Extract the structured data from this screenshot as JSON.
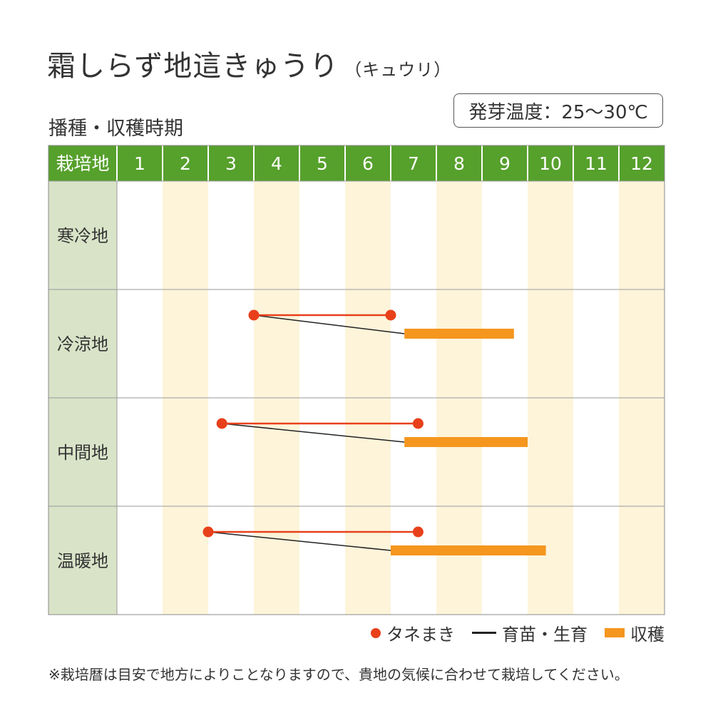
{
  "title": "霜しらず地這きゅうり",
  "title_sub": "（キュウリ）",
  "subtitle": "播種・収穫時期",
  "germination_temp": "発芽温度：25～30℃",
  "colors": {
    "header_green": "#56a02c",
    "row_header_bg": "#d9e3c8",
    "stripe": "#fdf4da",
    "sowing": "#e8401b",
    "harvest": "#f5961e",
    "growing": "#222222"
  },
  "chart_data": {
    "type": "table",
    "corner_label": "栽培地",
    "months": [
      "1",
      "2",
      "3",
      "4",
      "5",
      "6",
      "7",
      "8",
      "9",
      "10",
      "11",
      "12"
    ],
    "rows": [
      {
        "region": "寒冷地"
      },
      {
        "region": "冷涼地",
        "sowing": [
          4.0,
          7.0
        ],
        "harvest": [
          7.3,
          9.7
        ]
      },
      {
        "region": "中間地",
        "sowing": [
          3.3,
          7.6
        ],
        "harvest": [
          7.3,
          10.0
        ]
      },
      {
        "region": "温暖地",
        "sowing": [
          3.0,
          7.6
        ],
        "harvest": [
          7.0,
          10.4
        ]
      }
    ]
  },
  "legend": {
    "sowing": "タネまき",
    "growing": "育苗・生育",
    "harvest": "収穫"
  },
  "note": "※栽培暦は目安で地方によりことなりますので、貴地の気候に合わせて栽培してください。"
}
